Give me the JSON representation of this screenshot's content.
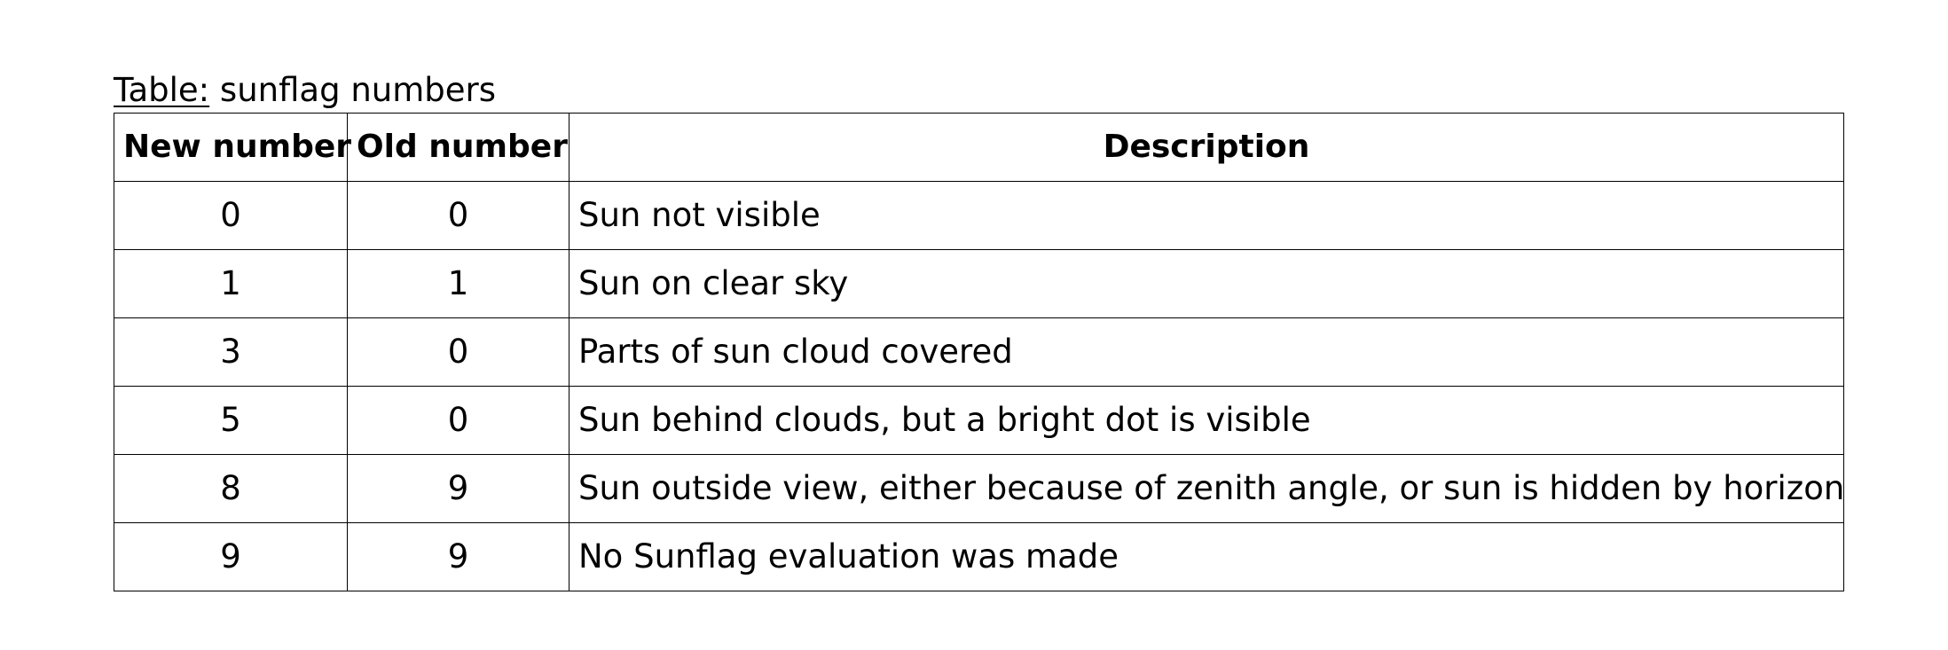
{
  "caption": {
    "label": "Table:",
    "title": " sunflag numbers"
  },
  "table": {
    "headers": [
      "New number",
      "Old number",
      "Description"
    ],
    "rows": [
      {
        "new": "0",
        "old": "0",
        "desc": "Sun not visible"
      },
      {
        "new": "1",
        "old": "1",
        "desc": "Sun on clear sky"
      },
      {
        "new": "3",
        "old": "0",
        "desc": "Parts of sun cloud covered"
      },
      {
        "new": "5",
        "old": "0",
        "desc": "Sun behind clouds, but a bright dot is visible"
      },
      {
        "new": "8",
        "old": "9",
        "desc": "Sun outside view, either because of zenith angle, or  sun is hidden by horizon"
      },
      {
        "new": "9",
        "old": "9",
        "desc": "No Sunflag evaluation was made"
      }
    ]
  }
}
